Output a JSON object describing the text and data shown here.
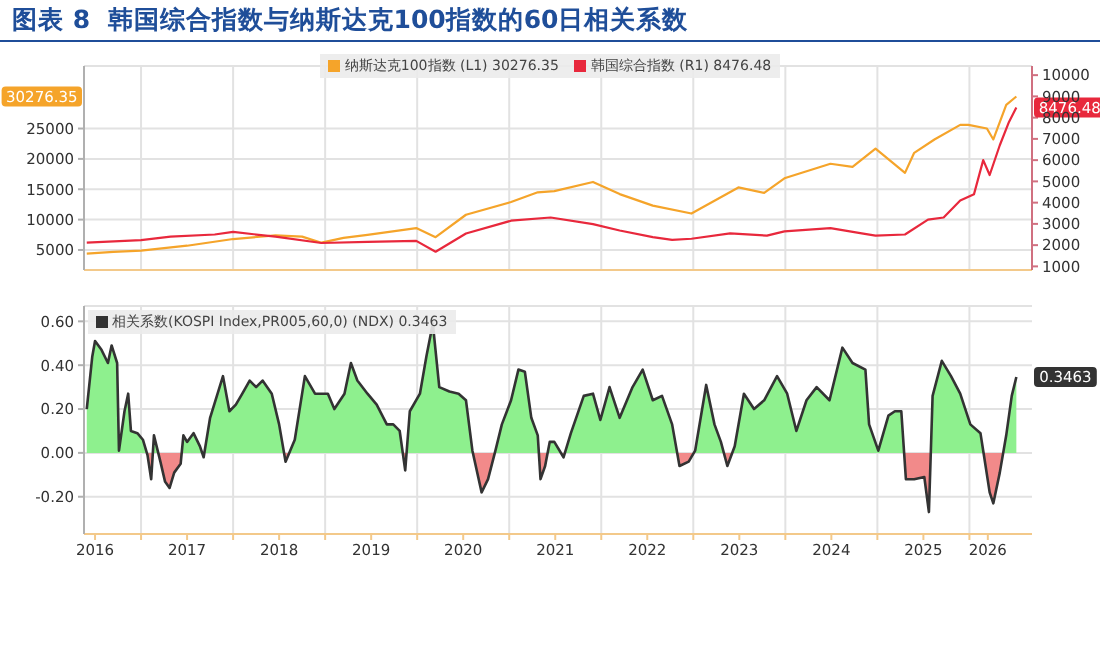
{
  "chart_data": [
    {
      "type": "line",
      "title": "图表 8  韩国综合指数与纳斯达克100指数的60日相关系数",
      "series": [
        {
          "name": "纳斯达克100指数 (L1) 30276.35",
          "color": "#f5a42a",
          "x": [
            2016.41,
            2016.7,
            2017.0,
            2017.5,
            2018.0,
            2018.46,
            2018.75,
            2018.96,
            2019.2,
            2019.46,
            2019.99,
            2020.2,
            2020.53,
            2021.02,
            2021.31,
            2021.49,
            2021.91,
            2022.2,
            2022.56,
            2022.98,
            2023.49,
            2023.77,
            2023.99,
            2024.49,
            2024.73,
            2024.98,
            2025.3,
            2025.4,
            2025.62,
            2025.9,
            2025.99,
            2026.19,
            2026.26,
            2026.4,
            2026.51
          ],
          "values": [
            4400,
            4700,
            4900,
            5700,
            6800,
            7400,
            7200,
            6200,
            7000,
            7500,
            8600,
            7100,
            10800,
            12900,
            14500,
            14700,
            16200,
            14200,
            12300,
            11000,
            15300,
            14400,
            16800,
            19200,
            18700,
            21700,
            17700,
            21000,
            23200,
            25600,
            25600,
            25000,
            23200,
            28900,
            30276.35
          ]
        },
        {
          "name": "韩国综合指数 (R1) 8476.48",
          "color": "#e8283c",
          "axis": "y2",
          "x": [
            2016.41,
            2017.0,
            2017.32,
            2017.8,
            2018.0,
            2018.46,
            2018.96,
            2019.46,
            2019.99,
            2020.2,
            2020.53,
            2021.02,
            2021.45,
            2021.91,
            2022.2,
            2022.56,
            2022.77,
            2022.98,
            2023.4,
            2023.8,
            2023.99,
            2024.49,
            2024.83,
            2024.98,
            2025.3,
            2025.55,
            2025.72,
            2025.9,
            2026.05,
            2026.15,
            2026.22,
            2026.33,
            2026.43,
            2026.51
          ],
          "values": [
            2120,
            2240,
            2400,
            2500,
            2620,
            2400,
            2100,
            2150,
            2200,
            1690,
            2550,
            3150,
            3300,
            2990,
            2690,
            2380,
            2250,
            2300,
            2550,
            2450,
            2650,
            2800,
            2550,
            2450,
            2500,
            3200,
            3300,
            4100,
            4400,
            6000,
            5300,
            6700,
            7800,
            8476.48
          ]
        }
      ],
      "xlim": [
        2016.38,
        2026.68
      ],
      "xticks": [
        {
          "value": 2017,
          "label": null
        },
        {
          "value": 2018,
          "label": null
        },
        {
          "value": 2019,
          "label": null
        },
        {
          "value": 2020,
          "label": null
        },
        {
          "value": 2021,
          "label": null
        },
        {
          "value": 2022,
          "label": null
        },
        {
          "value": 2023,
          "label": null
        },
        {
          "value": 2024,
          "label": null
        },
        {
          "value": 2025,
          "label": null
        },
        {
          "value": 2026,
          "label": null
        }
      ],
      "ylim": [
        1700,
        35300
      ],
      "yticks": [
        5000,
        10000,
        15000,
        20000,
        25000
      ],
      "y2lim": [
        830,
        10430
      ],
      "y2ticks": [
        1000,
        2000,
        3000,
        4000,
        5000,
        6000,
        7000,
        8000,
        9000,
        10000
      ],
      "tick_labels": "y",
      "grid": true,
      "legend": "top",
      "annotations": [
        "30276.35",
        "8476.48"
      ]
    },
    {
      "type": "area",
      "x": [
        2016.41,
        2016.47,
        2016.5,
        2016.57,
        2016.64,
        2016.68,
        2016.74,
        2016.76,
        2016.82,
        2016.86,
        2016.89,
        2016.96,
        2017.02,
        2017.07,
        2017.11,
        2017.14,
        2017.21,
        2017.26,
        2017.31,
        2017.36,
        2017.43,
        2017.46,
        2017.5,
        2017.57,
        2017.64,
        2017.68,
        2017.75,
        2017.89,
        2017.96,
        2018.03,
        2018.1,
        2018.18,
        2018.25,
        2018.32,
        2018.42,
        2018.5,
        2018.57,
        2018.67,
        2018.78,
        2018.89,
        2019.03,
        2019.1,
        2019.21,
        2019.28,
        2019.35,
        2019.46,
        2019.56,
        2019.67,
        2019.74,
        2019.81,
        2019.87,
        2019.92,
        2020.03,
        2020.1,
        2020.17,
        2020.24,
        2020.35,
        2020.45,
        2020.53,
        2020.6,
        2020.7,
        2020.77,
        2020.85,
        2020.92,
        2021.02,
        2021.1,
        2021.17,
        2021.24,
        2021.31,
        2021.34,
        2021.39,
        2021.44,
        2021.49,
        2021.59,
        2021.67,
        2021.81,
        2021.91,
        2021.99,
        2022.09,
        2022.2,
        2022.34,
        2022.45,
        2022.56,
        2022.66,
        2022.77,
        2022.85,
        2022.95,
        2023.02,
        2023.14,
        2023.23,
        2023.3,
        2023.37,
        2023.45,
        2023.55,
        2023.66,
        2023.77,
        2023.91,
        2024.02,
        2024.12,
        2024.23,
        2024.34,
        2024.48,
        2024.62,
        2024.73,
        2024.87,
        2024.91,
        2025.01,
        2025.12,
        2025.19,
        2025.26,
        2025.31,
        2025.4,
        2025.51,
        2025.56,
        2025.6,
        2025.7,
        2025.8,
        2025.9,
        2026.01,
        2026.12,
        2026.15,
        2026.22,
        2026.26,
        2026.33,
        2026.4,
        2026.46,
        2026.51
      ],
      "series": [
        {
          "name": "相关系数(KOSPI Index,PR005,60,0) (NDX) 0.3463",
          "color": "#333333",
          "values": [
            0.2,
            0.44,
            0.51,
            0.47,
            0.41,
            0.49,
            0.41,
            0.01,
            0.19,
            0.27,
            0.1,
            0.09,
            0.06,
            -0.01,
            -0.12,
            0.08,
            -0.04,
            -0.13,
            -0.16,
            -0.09,
            -0.05,
            0.08,
            0.05,
            0.09,
            0.03,
            -0.02,
            0.16,
            0.35,
            0.19,
            0.22,
            0.27,
            0.33,
            0.3,
            0.33,
            0.27,
            0.13,
            -0.04,
            0.06,
            0.35,
            0.27,
            0.27,
            0.2,
            0.27,
            0.41,
            0.33,
            0.27,
            0.22,
            0.13,
            0.13,
            0.1,
            -0.08,
            0.19,
            0.27,
            0.44,
            0.59,
            0.3,
            0.28,
            0.27,
            0.24,
            0.01,
            -0.18,
            -0.12,
            0.01,
            0.13,
            0.24,
            0.38,
            0.37,
            0.16,
            0.08,
            -0.12,
            -0.06,
            0.05,
            0.05,
            -0.02,
            0.09,
            0.26,
            0.27,
            0.15,
            0.3,
            0.16,
            0.3,
            0.38,
            0.24,
            0.26,
            0.13,
            -0.06,
            -0.04,
            0.01,
            0.31,
            0.13,
            0.05,
            -0.06,
            0.03,
            0.27,
            0.2,
            0.24,
            0.35,
            0.27,
            0.1,
            0.24,
            0.3,
            0.24,
            0.48,
            0.41,
            0.38,
            0.13,
            0.01,
            0.17,
            0.19,
            0.19,
            -0.12,
            -0.12,
            -0.11,
            -0.27,
            0.26,
            0.42,
            0.35,
            0.27,
            0.13,
            0.09,
            0.01,
            -0.18,
            -0.23,
            -0.09,
            0.08,
            0.26,
            0.3463
          ]
        }
      ],
      "xlim": [
        2016.38,
        2026.68
      ],
      "xticks": [
        {
          "value": 2016.5,
          "label": "2016"
        },
        {
          "value": 2017,
          "label": null
        },
        {
          "value": 2017.5,
          "label": "2017"
        },
        {
          "value": 2018,
          "label": null
        },
        {
          "value": 2018.5,
          "label": "2018"
        },
        {
          "value": 2019,
          "label": null
        },
        {
          "value": 2019.5,
          "label": "2019"
        },
        {
          "value": 2020,
          "label": null
        },
        {
          "value": 2020.5,
          "label": "2020"
        },
        {
          "value": 2021,
          "label": null
        },
        {
          "value": 2021.5,
          "label": "2021"
        },
        {
          "value": 2022,
          "label": null
        },
        {
          "value": 2022.5,
          "label": "2022"
        },
        {
          "value": 2023,
          "label": null
        },
        {
          "value": 2023.5,
          "label": "2023"
        },
        {
          "value": 2024,
          "label": null
        },
        {
          "value": 2024.5,
          "label": "2024"
        },
        {
          "value": 2025,
          "label": null
        },
        {
          "value": 2025.5,
          "label": "2025"
        },
        {
          "value": 2026,
          "label": null
        },
        {
          "value": 2026.2,
          "label": "2026"
        }
      ],
      "ylim": [
        -0.37,
        0.67
      ],
      "yticks": [
        {
          "value": -0.2,
          "label": "-0.20"
        },
        {
          "value": 0,
          "label": "0.00"
        },
        {
          "value": 0.2,
          "label": "0.20"
        },
        {
          "value": 0.4,
          "label": "0.40"
        },
        {
          "value": 0.6,
          "label": "0.60"
        }
      ],
      "grid": true,
      "legend": "top left",
      "annotations": [
        "0.3463"
      ]
    }
  ]
}
